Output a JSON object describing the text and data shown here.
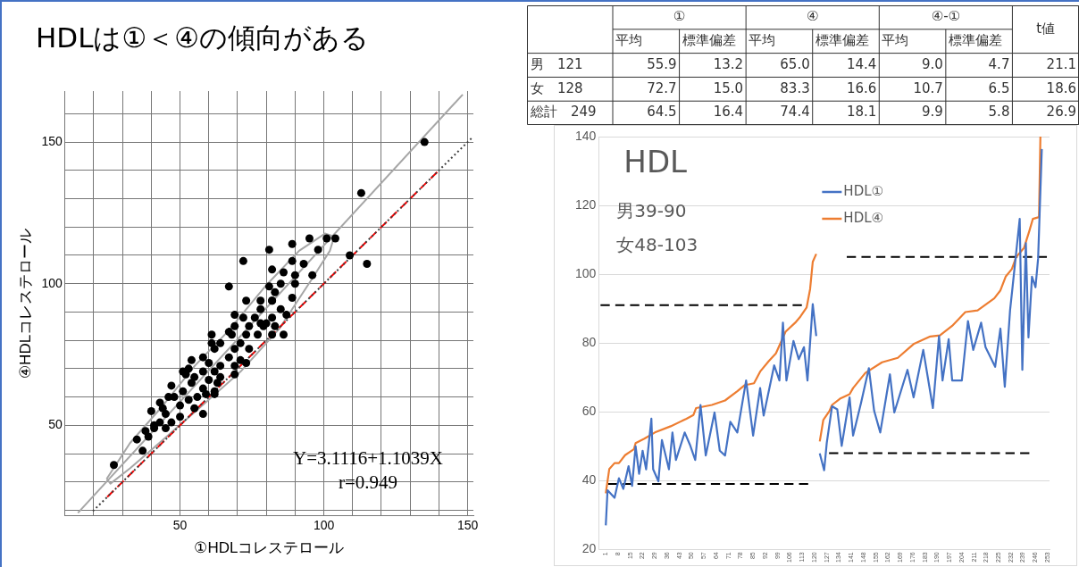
{
  "chart_data": [
    {
      "type": "scatter",
      "title": "HDLは①＜④の傾向がある",
      "xlabel": "①HDLコレステロール",
      "ylabel": "④HDLコレステロール",
      "annotations": [
        "Y=3.1116+1.1039X",
        "r=0.949"
      ],
      "xlim": [
        10,
        152
      ],
      "ylim": [
        18,
        168
      ],
      "xticks": [
        {
          "value": 20,
          "label": null
        },
        {
          "value": 30,
          "label": null
        },
        {
          "value": 40,
          "label": null
        },
        50,
        {
          "value": 60,
          "label": null
        },
        {
          "value": 70,
          "label": null
        },
        {
          "value": 80,
          "label": null
        },
        {
          "value": 90,
          "label": null
        },
        100,
        {
          "value": 110,
          "label": null
        },
        {
          "value": 120,
          "label": null
        },
        {
          "value": 130,
          "label": null
        },
        {
          "value": 140,
          "label": null
        },
        150
      ],
      "yticks": [
        {
          "value": 20,
          "label": null
        },
        {
          "value": 30,
          "label": null
        },
        {
          "value": 40,
          "label": null
        },
        50,
        {
          "value": 60,
          "label": null
        },
        {
          "value": 70,
          "label": null
        },
        {
          "value": 80,
          "label": null
        },
        {
          "value": 90,
          "label": null
        },
        100,
        {
          "value": 110,
          "label": null
        },
        {
          "value": 120,
          "label": null
        },
        {
          "value": 130,
          "label": null
        },
        {
          "value": 140,
          "label": null
        },
        150,
        {
          "value": 160,
          "label": null
        }
      ],
      "grid": true,
      "marker": "circle",
      "series": [
        {
          "type": "scatter",
          "color": "#000000",
          "x": [
            135,
            113,
            115,
            109,
            101,
            104,
            95,
            89,
            98,
            81,
            72,
            67,
            89,
            93,
            82,
            86,
            90,
            96,
            85,
            90,
            81,
            83,
            89,
            73,
            78,
            82,
            85,
            78,
            69,
            72,
            76,
            82,
            87,
            69,
            74,
            79,
            83,
            86,
            82,
            61,
            68,
            73,
            77,
            64,
            71,
            69,
            62,
            58,
            54,
            67,
            71,
            60,
            64,
            73,
            53,
            58,
            62,
            69,
            55,
            60,
            54,
            47,
            63,
            51,
            58,
            62,
            46,
            53,
            59,
            62,
            43,
            50,
            55,
            40,
            45,
            50,
            58,
            43,
            47,
            38,
            41,
            45,
            35,
            39,
            37,
            27,
            78,
            67,
            61,
            48,
            52,
            44,
            41,
            56,
            64,
            69,
            82,
            80,
            74,
            51
          ],
          "values": [
            150,
            132,
            107,
            110,
            116,
            116,
            116,
            114,
            112,
            112,
            108,
            99,
            108,
            107,
            105,
            104,
            103,
            103,
            100,
            100,
            99,
            97,
            95,
            94,
            94,
            94,
            91,
            91,
            89,
            88,
            88,
            88,
            89,
            85,
            85,
            85,
            85,
            82,
            82,
            82,
            82,
            82,
            82,
            79,
            79,
            77,
            77,
            74,
            73,
            74,
            73,
            72,
            71,
            72,
            70,
            69,
            69,
            68,
            67,
            66,
            65,
            64,
            65,
            62,
            63,
            62,
            60,
            59,
            61,
            61,
            58,
            57,
            56,
            55,
            54,
            53,
            54,
            51,
            51,
            48,
            49,
            49,
            45,
            46,
            41,
            36,
            86,
            83,
            79,
            60,
            68,
            56,
            50,
            60,
            67,
            71,
            94,
            86,
            77,
            69
          ]
        },
        {
          "type": "line",
          "color": "#a6a6a6",
          "x": [
            14.5,
            148.3
          ],
          "values": [
            19.1,
            166.8
          ],
          "marker": "none"
        },
        {
          "type": "line",
          "color": "#404040",
          "line_style": "dotted",
          "x": [
            19.7,
            151.3
          ],
          "values": [
            19.7,
            151.3
          ],
          "marker": "none"
        },
        {
          "type": "line",
          "color": "#ff0000",
          "line_style": "dashed",
          "x": [
            24.7,
            139.4
          ],
          "values": [
            24.7,
            139.4
          ],
          "marker": "none"
        },
        {
          "type": "line",
          "color": "#a6a6a6",
          "marker": "none",
          "x": [
            24.5,
            32.6,
            43.9,
            55.2,
            66.5,
            80.1,
            91.4,
            100.4,
            103.6
          ],
          "values": [
            31.1,
            43.7,
            56.8,
            71.1,
            83,
            99.6,
            111.6,
            117.7,
            116.6
          ]
        },
        {
          "type": "line",
          "color": "#a6a6a6",
          "marker": "none",
          "x": [
            24.5,
            25.8,
            32.6,
            43.9,
            57.5,
            71,
            84.6,
            95.9,
            102.1,
            103.6
          ],
          "values": [
            31.1,
            29.4,
            34.8,
            44.7,
            56.8,
            68.9,
            84.2,
            101.7,
            111.6,
            116.6
          ]
        }
      ]
    },
    {
      "type": "heatmap",
      "categories": [
        "平均",
        "標準偏差",
        "平均",
        "標準偏差",
        "平均",
        "標準偏差",
        "t値"
      ],
      "y_categories": [
        "男　121",
        "女　128",
        "総計　249"
      ],
      "annotations": [
        "①",
        "④",
        "④-①"
      ],
      "cells": [
        [
          55.9,
          13.2,
          65.0,
          14.4,
          9.0,
          4.7,
          21.1
        ],
        [
          72.7,
          15.0,
          83.3,
          16.6,
          10.7,
          6.5,
          18.6
        ],
        [
          64.5,
          16.4,
          74.4,
          18.1,
          9.9,
          5.8,
          26.9
        ]
      ],
      "data_labels": true,
      "cell_labels": [
        [
          "55.9",
          "13.2",
          "65.0",
          "14.4",
          "9.0",
          "4.7",
          "21.1"
        ],
        [
          "72.7",
          "15.0",
          "83.3",
          "16.6",
          "10.7",
          "6.5",
          "18.6"
        ],
        [
          "64.5",
          "16.4",
          "74.4",
          "18.1",
          "9.9",
          "5.8",
          "26.9"
        ]
      ]
    },
    {
      "type": "line",
      "title": "HDL",
      "annotations": [
        "男39-90",
        "女48-103"
      ],
      "xlim": [
        -3,
        254
      ],
      "xticks": [
        1,
        8,
        15,
        22,
        29,
        36,
        43,
        50,
        57,
        64,
        71,
        78,
        85,
        92,
        99,
        106,
        113,
        120,
        127,
        134,
        141,
        148,
        155,
        162,
        169,
        176,
        183,
        190,
        197,
        204,
        211,
        218,
        225,
        232,
        239,
        246,
        253
      ],
      "ylim": [
        20,
        140
      ],
      "yticks": [
        20,
        40,
        60,
        80,
        100,
        120,
        140
      ],
      "grid": "y",
      "legend": "top right",
      "marker": "none",
      "series": [
        {
          "name": "HDL①",
          "color": "#4472c4",
          "x": [
            1,
            2,
            6,
            8.5,
            11,
            14,
            16,
            18,
            20,
            22,
            24,
            27,
            28,
            31,
            33,
            37,
            39,
            41,
            46,
            49,
            52,
            55,
            58,
            63,
            66,
            69,
            72,
            76,
            81,
            85,
            89,
            91,
            97,
            100,
            102,
            104,
            108,
            111,
            114,
            116,
            119,
            121,
            122,
            123,
            125.5,
            127,
            130,
            133,
            135.5,
            140,
            142,
            146.5,
            151,
            154,
            157.5,
            163,
            165.5,
            173,
            176.5,
            182,
            187.5,
            191,
            193,
            196.5,
            198.5,
            204,
            207.5,
            210.5,
            215,
            217.5,
            223,
            226,
            228.5,
            231.5,
            233,
            237,
            238.5,
            240.5,
            242,
            244,
            246,
            247.5,
            249.6
          ],
          "values": [
            27,
            37.2,
            35,
            40.7,
            37.6,
            44.2,
            38.5,
            50,
            42,
            48.7,
            43.3,
            58,
            43.3,
            39.8,
            51.8,
            43.3,
            54,
            46,
            54,
            50.4,
            46,
            62,
            47.3,
            59.8,
            48.7,
            47.3,
            57.1,
            54,
            69.1,
            53.1,
            66.9,
            58.9,
            73.5,
            69.1,
            85.9,
            69.1,
            80.6,
            75.3,
            78.8,
            69.1,
            91.3,
            82,
            null,
            47.9,
            43,
            51,
            61.6,
            60.7,
            50.1,
            64.2,
            53.1,
            62.5,
            72.7,
            60.3,
            54,
            70.9,
            59.8,
            72.2,
            64.2,
            78,
            61.1,
            82,
            69.1,
            81.1,
            69.1,
            69.1,
            86.4,
            78,
            85.9,
            78.8,
            73.1,
            84.2,
            67.3,
            89.5,
            96.6,
            116.1,
            72.2,
            109,
            81.6,
            99.3,
            96.2,
            104.6,
            136.4
          ]
        },
        {
          "name": "HDL④",
          "color": "#ed7d31",
          "x": [
            1,
            3,
            6,
            8.5,
            12,
            17,
            18,
            23,
            29,
            38,
            47,
            51,
            52.5,
            61.5,
            69,
            76,
            80,
            85.5,
            89,
            94,
            98,
            103.5,
            109,
            112,
            115.5,
            117.5,
            119,
            121,
            122,
            123,
            125,
            128.5,
            130,
            134.5,
            140,
            142,
            149,
            158.5,
            167.5,
            176.5,
            186,
            191.5,
            198.5,
            206,
            213,
            222.5,
            226,
            229,
            232.5,
            235,
            239.5,
            242.5,
            244.5,
            248,
            248.8
          ],
          "values": [
            36.3,
            43.4,
            45.1,
            45.1,
            47.4,
            49.1,
            50.9,
            52.2,
            54,
            55.8,
            58,
            59.1,
            61.1,
            62,
            63.3,
            66,
            67.7,
            68.3,
            71.7,
            74.8,
            77,
            83.3,
            85.9,
            87.7,
            90.3,
            95.7,
            103.6,
            105.9,
            null,
            51.4,
            57.6,
            60.2,
            62,
            63.8,
            65.1,
            66.9,
            71.3,
            74.4,
            75.7,
            79.7,
            81.9,
            82.2,
            85,
            89,
            89.5,
            93,
            95.3,
            99.3,
            101.5,
            105,
            107.7,
            112.6,
            116.1,
            116.6,
            140
          ]
        },
        {
          "type": "line",
          "color": "#000000",
          "line_style": "dashed",
          "x": [
            -2,
            112.8
          ],
          "values": [
            91,
            91
          ]
        },
        {
          "type": "line",
          "color": "#000000",
          "line_style": "dashed",
          "x": [
            2.3,
            116.4
          ],
          "values": [
            39,
            39
          ]
        },
        {
          "type": "line",
          "color": "#000000",
          "line_style": "dashed",
          "x": [
            138.4,
            252.5
          ],
          "values": [
            105,
            105
          ]
        },
        {
          "type": "line",
          "color": "#000000",
          "line_style": "dashed",
          "x": [
            128.3,
            242.5
          ],
          "values": [
            48,
            48
          ]
        }
      ]
    }
  ]
}
